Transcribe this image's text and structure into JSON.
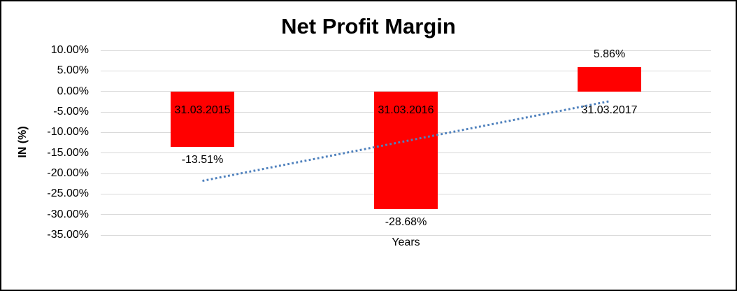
{
  "chart_data": {
    "type": "bar",
    "title": "Net Profit Margin",
    "xlabel": "Years",
    "ylabel": "IN (%)",
    "categories": [
      "31.03.2015",
      "31.03.2016",
      "31.03.2017"
    ],
    "values": [
      -13.51,
      -28.68,
      5.86
    ],
    "data_labels": [
      "-13.51%",
      "-28.68%",
      "5.86%"
    ],
    "ylim": [
      -35,
      10
    ],
    "ytick_step": 5,
    "ytick_labels": [
      "10.00%",
      "5.00%",
      "0.00%",
      "-5.00%",
      "-10.00%",
      "-15.00%",
      "-20.00%",
      "-25.00%",
      "-30.00%",
      "-35.00%"
    ],
    "grid": true,
    "legend": "none",
    "bar_color": "#ff0000",
    "gridline_color": "#d9d9d9",
    "trendline": {
      "type": "linear",
      "style": "dotted",
      "color": "#4f81bd",
      "start_value": -21.8,
      "end_value": -2.4
    }
  }
}
